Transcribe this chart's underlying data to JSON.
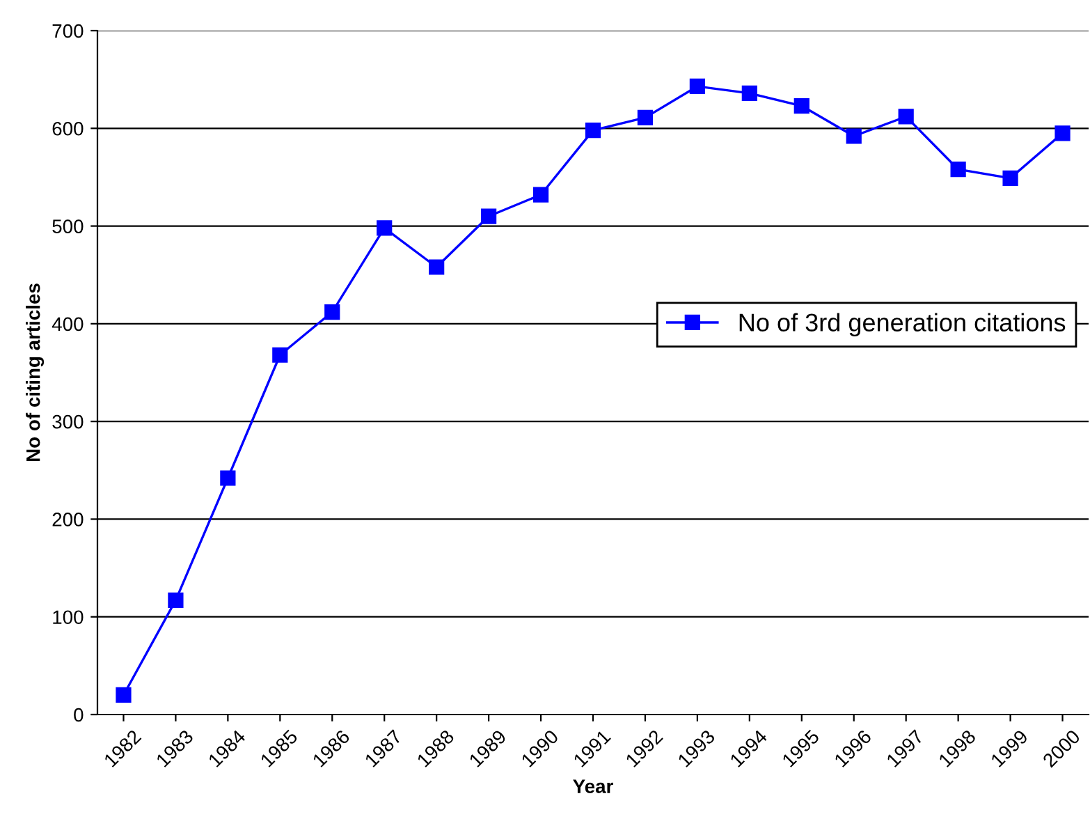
{
  "chart_data": {
    "type": "line",
    "xlabel": "Year",
    "ylabel": "No of citing articles",
    "categories": [
      "1982",
      "1983",
      "1984",
      "1985",
      "1986",
      "1987",
      "1988",
      "1989",
      "1990",
      "1991",
      "1992",
      "1993",
      "1994",
      "1995",
      "1996",
      "1997",
      "1998",
      "1999",
      "2000"
    ],
    "series": [
      {
        "name": "No of 3rd generation citations",
        "color": "#0000ff",
        "values": [
          20,
          117,
          242,
          368,
          412,
          498,
          458,
          510,
          532,
          598,
          611,
          643,
          636,
          623,
          592,
          612,
          558,
          549,
          595
        ]
      }
    ],
    "ylim": [
      0,
      700
    ],
    "yticks": [
      0,
      100,
      200,
      300,
      400,
      500,
      600,
      700
    ],
    "grid": "y",
    "legend": "right",
    "marker": "square",
    "line_style": "solid"
  }
}
